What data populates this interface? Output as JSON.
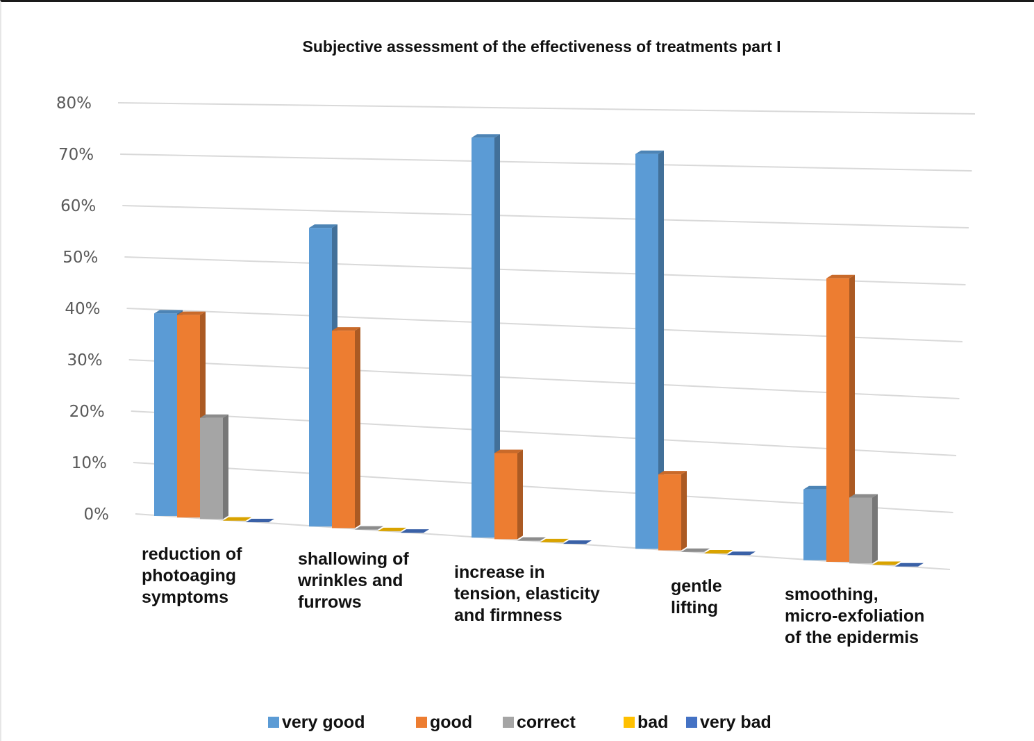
{
  "chart_data": {
    "type": "bar",
    "title": "Subjective assessment of the effectiveness of treatments part I",
    "categories": [
      [
        "reduction of",
        "photoaging",
        "symptoms"
      ],
      [
        "shallowing of",
        "wrinkles and",
        "furrows"
      ],
      [
        "increase in",
        "tension, elasticity",
        "and firmness"
      ],
      [
        "gentle",
        "lifting"
      ],
      [
        "smoothing,",
        "micro-exfoliation",
        "of the epidermis"
      ]
    ],
    "y_ticks": [
      "0%",
      "10%",
      "20%",
      "30%",
      "40%",
      "50%",
      "60%",
      "70%",
      "80%"
    ],
    "ylim": [
      0,
      80
    ],
    "series": [
      {
        "name": "very good",
        "color": "#5B9BD5",
        "values": [
          40,
          59,
          79,
          78,
          14
        ]
      },
      {
        "name": "good",
        "color": "#ED7D31",
        "values": [
          40,
          39,
          17,
          15,
          56
        ]
      },
      {
        "name": "correct",
        "color": "#A5A5A5",
        "values": [
          20,
          0,
          0,
          0,
          13
        ]
      },
      {
        "name": "bad",
        "color": "#FFC000",
        "values": [
          0,
          0,
          0,
          0,
          0
        ]
      },
      {
        "name": "very bad",
        "color": "#4472C4",
        "values": [
          0,
          0,
          0,
          0,
          0
        ]
      }
    ],
    "grid": true,
    "legend_position": "bottom",
    "three_d": true
  }
}
